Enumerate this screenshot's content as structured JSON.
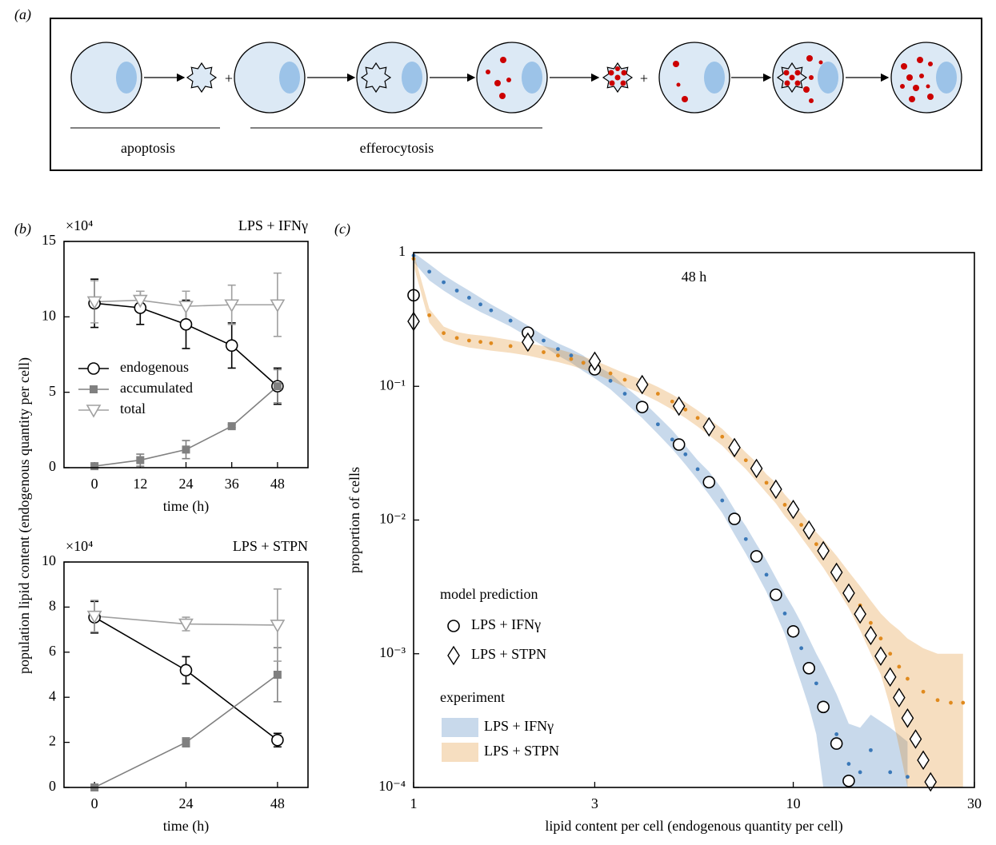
{
  "panel_labels": [
    "(a)",
    "(b)",
    "(c)"
  ],
  "diagram": {
    "plus_signs": [
      "+",
      "+"
    ],
    "apoptosis": "apoptosis",
    "efferocytosis": "efferocytosis"
  },
  "chart_data": [
    {
      "type": "line",
      "title": "LPS + IFNγ",
      "y_multiplier": "×10⁴",
      "ylabel": "population lipid content (endogenous quantity per cell)",
      "xlabel": "time (h)",
      "x": [
        0,
        12,
        24,
        36,
        48
      ],
      "xlim": [
        -8,
        56
      ],
      "xticks": [
        0,
        12,
        24,
        36,
        48
      ],
      "ylim": [
        0,
        15
      ],
      "yticks": [
        0,
        5,
        10,
        15
      ],
      "legend": true,
      "series": [
        {
          "name": "endogenous",
          "color": "#000000",
          "marker": "circle",
          "values": [
            10.9,
            10.6,
            9.5,
            8.1,
            5.4
          ],
          "errors": [
            1.6,
            1.1,
            1.6,
            1.5,
            1.2
          ]
        },
        {
          "name": "accumulated",
          "color": "#808080",
          "marker": "square",
          "values": [
            0.1,
            0.5,
            1.2,
            2.75,
            5.4
          ],
          "errors": [
            0.1,
            0.4,
            0.6,
            0.1,
            1.1
          ]
        },
        {
          "name": "total",
          "color": "#a0a0a0",
          "marker": "triangle-down",
          "values": [
            11.0,
            11.1,
            10.7,
            10.8,
            10.8
          ],
          "errors": [
            1.4,
            0.6,
            1.0,
            1.3,
            2.1
          ]
        }
      ]
    },
    {
      "type": "line",
      "title": "LPS + STPN",
      "y_multiplier": "×10⁴",
      "xlabel": "time (h)",
      "x": [
        0,
        24,
        48
      ],
      "xlim": [
        -8,
        56
      ],
      "xticks": [
        0,
        24,
        48
      ],
      "ylim": [
        0,
        10
      ],
      "yticks": [
        0,
        2,
        4,
        6,
        8,
        10
      ],
      "legend": false,
      "series": [
        {
          "color": "#000000",
          "marker": "circle",
          "values": [
            7.55,
            5.2,
            2.1
          ],
          "errors": [
            0.7,
            0.6,
            0.3
          ]
        },
        {
          "color": "#808080",
          "marker": "square",
          "values": [
            0,
            2.0,
            5.0
          ],
          "errors": [
            0.05,
            0.2,
            1.2
          ]
        },
        {
          "color": "#a0a0a0",
          "marker": "triangle-down",
          "values": [
            7.6,
            7.25,
            7.2
          ],
          "errors": [
            0.7,
            0.3,
            1.6
          ]
        }
      ]
    },
    {
      "type": "scatter",
      "annotation": "48 h",
      "ylabel": "proportion of cells",
      "xlabel": "lipid content per cell (endogenous quantity per cell)",
      "log_x": true,
      "log_y": true,
      "xlim": [
        1,
        30
      ],
      "xticks": [
        1,
        3,
        10,
        30
      ],
      "ylim": [
        0.0001,
        1
      ],
      "yticks": [
        {
          "value": 0.0001,
          "label": "10⁻⁴"
        },
        {
          "value": 0.001,
          "label": "10⁻³"
        },
        {
          "value": 0.01,
          "label": "10⁻²"
        },
        {
          "value": 0.1,
          "label": "10⁻¹"
        },
        1
      ],
      "legend_titles": [
        "model prediction",
        "experiment"
      ],
      "series": [
        {
          "name": "LPS + IFNγ",
          "marker": "circle",
          "color": "#000000",
          "x": [
            1,
            2,
            3,
            4,
            5,
            6,
            7,
            8,
            9,
            10,
            11,
            12,
            13,
            14
          ],
          "values": [
            0.48,
            0.252,
            0.134,
            0.07,
            0.0367,
            0.0192,
            0.0102,
            0.00535,
            0.00276,
            0.00147,
            0.00078,
            0.0004,
            0.000213,
            0.000112
          ]
        },
        {
          "name": "LPS + STPN",
          "marker": "diamond",
          "color": "#000000",
          "x": [
            1,
            2,
            3,
            4,
            5,
            6,
            7,
            8,
            9,
            10,
            11,
            12,
            13,
            14,
            15,
            16,
            17,
            18,
            19,
            20,
            21,
            22,
            23
          ],
          "values": [
            0.306,
            0.214,
            0.154,
            0.103,
            0.0711,
            0.0498,
            0.0348,
            0.0243,
            0.017,
            0.012,
            0.0084,
            0.00589,
            0.00406,
            0.00284,
            0.00198,
            0.00137,
            0.00096,
            0.00067,
            0.00047,
            0.00033,
            0.00023,
            0.00016,
            0.00011
          ]
        },
        {
          "name": "LPS + IFNγ",
          "color": "#3a78b8",
          "x": [
            1,
            1.1,
            1.2,
            1.3,
            1.4,
            1.5,
            1.6,
            1.8,
            2,
            2.2,
            2.4,
            2.6,
            2.8,
            3,
            3.3,
            3.6,
            4,
            4.4,
            4.8,
            5.2,
            5.6,
            6,
            6.5,
            7,
            7.5,
            8,
            8.5,
            9,
            9.5,
            10,
            10.5,
            11,
            11.5,
            12,
            13,
            14,
            15,
            16,
            18,
            20
          ],
          "values": [
            0.95,
            0.72,
            0.6,
            0.52,
            0.46,
            0.41,
            0.37,
            0.31,
            0.26,
            0.22,
            0.19,
            0.17,
            0.15,
            0.13,
            0.11,
            0.088,
            0.068,
            0.052,
            0.04,
            0.031,
            0.024,
            0.019,
            0.014,
            0.0098,
            0.0072,
            0.0052,
            0.0039,
            0.0028,
            0.002,
            0.0015,
            0.0011,
            0.0008,
            0.0006,
            0.00042,
            0.00025,
            0.00015,
            0.00013,
            0.00019,
            0.00013,
            0.00012
          ],
          "lower": [
            0.85,
            0.62,
            0.52,
            0.45,
            0.4,
            0.36,
            0.33,
            0.28,
            0.235,
            0.2,
            0.17,
            0.15,
            0.13,
            0.115,
            0.095,
            0.076,
            0.058,
            0.044,
            0.034,
            0.026,
            0.02,
            0.0155,
            0.0113,
            0.0078,
            0.0056,
            0.004,
            0.0029,
            0.002,
            0.0014,
            0.0009,
            0.0006,
            0.0004,
            0.00025,
            0.0001,
            0.0001,
            0.0001,
            0.0001,
            0.0001,
            0.0001,
            0.0001
          ],
          "upper": [
            1,
            0.82,
            0.68,
            0.59,
            0.52,
            0.46,
            0.41,
            0.34,
            0.285,
            0.24,
            0.21,
            0.19,
            0.17,
            0.145,
            0.125,
            0.1,
            0.078,
            0.06,
            0.047,
            0.036,
            0.028,
            0.023,
            0.017,
            0.012,
            0.009,
            0.0066,
            0.005,
            0.0037,
            0.0028,
            0.0022,
            0.0017,
            0.0013,
            0.001,
            0.0008,
            0.0005,
            0.0003,
            0.00028,
            0.00035,
            0.00028,
            0.00022
          ]
        },
        {
          "name": "LPS + STPN",
          "color": "#e08a1e",
          "x": [
            1,
            1.1,
            1.2,
            1.3,
            1.4,
            1.5,
            1.6,
            1.8,
            2,
            2.2,
            2.4,
            2.6,
            2.8,
            3,
            3.3,
            3.6,
            4,
            4.4,
            4.8,
            5.2,
            5.6,
            6,
            6.5,
            7,
            7.5,
            8,
            8.5,
            9,
            9.5,
            10,
            10.5,
            11,
            11.5,
            12,
            13,
            14,
            15,
            16,
            17,
            18,
            19,
            20,
            22,
            24,
            26,
            28
          ],
          "values": [
            0.9,
            0.34,
            0.25,
            0.23,
            0.22,
            0.215,
            0.21,
            0.2,
            0.19,
            0.18,
            0.17,
            0.16,
            0.15,
            0.14,
            0.125,
            0.112,
            0.1,
            0.088,
            0.077,
            0.067,
            0.058,
            0.05,
            0.042,
            0.034,
            0.028,
            0.023,
            0.019,
            0.016,
            0.013,
            0.011,
            0.0092,
            0.0078,
            0.0066,
            0.0057,
            0.0042,
            0.0031,
            0.0023,
            0.0017,
            0.0013,
            0.001,
            0.0008,
            0.00065,
            0.00052,
            0.00045,
            0.00043,
            0.00043
          ],
          "lower": [
            0.8,
            0.3,
            0.22,
            0.205,
            0.195,
            0.19,
            0.185,
            0.178,
            0.17,
            0.16,
            0.152,
            0.143,
            0.134,
            0.125,
            0.111,
            0.099,
            0.088,
            0.077,
            0.067,
            0.058,
            0.05,
            0.043,
            0.036,
            0.029,
            0.024,
            0.0195,
            0.016,
            0.0133,
            0.0107,
            0.009,
            0.0074,
            0.0062,
            0.0052,
            0.0044,
            0.0031,
            0.0022,
            0.0015,
            0.001,
            0.0007,
            0.0004,
            0.0002,
            0.0001,
            0.0001,
            0.0001,
            0.0001,
            0.0001
          ],
          "upper": [
            1,
            0.38,
            0.28,
            0.255,
            0.245,
            0.24,
            0.235,
            0.222,
            0.21,
            0.2,
            0.19,
            0.178,
            0.167,
            0.156,
            0.139,
            0.125,
            0.112,
            0.099,
            0.087,
            0.076,
            0.066,
            0.057,
            0.048,
            0.039,
            0.032,
            0.027,
            0.022,
            0.019,
            0.0155,
            0.0132,
            0.0112,
            0.0095,
            0.0081,
            0.0071,
            0.0054,
            0.0041,
            0.0032,
            0.0025,
            0.002,
            0.0017,
            0.0015,
            0.0013,
            0.0011,
            0.001,
            0.001,
            0.001
          ]
        }
      ]
    }
  ]
}
